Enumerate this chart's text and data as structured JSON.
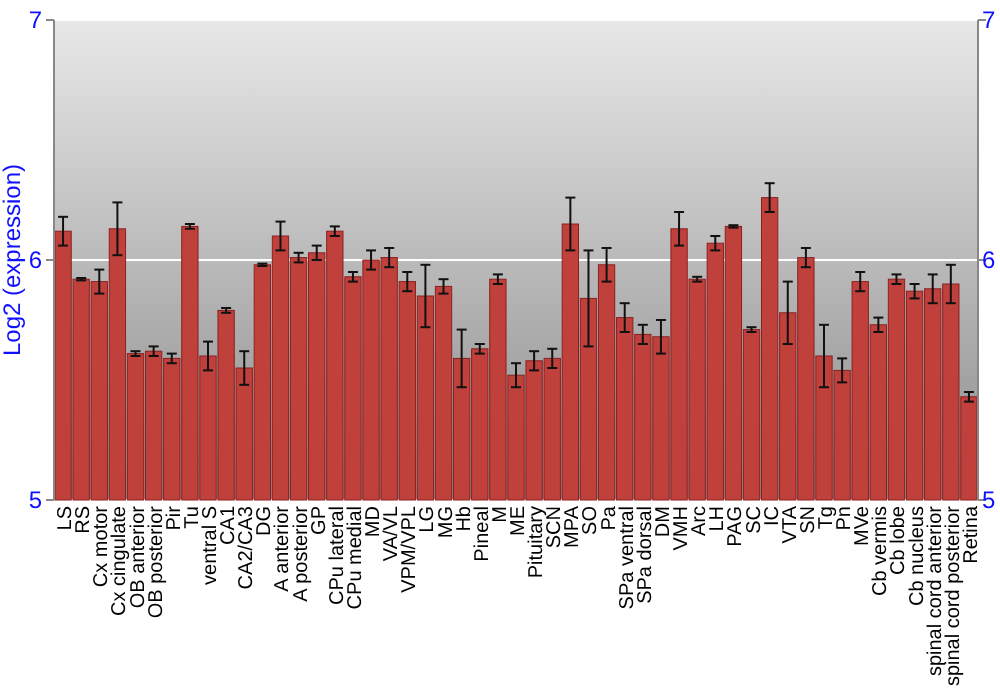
{
  "chart_data": {
    "type": "bar",
    "ylabel": "Log2 (expression)",
    "categories": [
      "LS",
      "RS",
      "Cx motor",
      "Cx cingulate",
      "OB anterior",
      "OB posterior",
      "Pir",
      "Tu",
      "ventral S",
      "CA1",
      "CA2/CA3",
      "DG",
      "A anterior",
      "A posterior",
      "GP",
      "CPu lateral",
      "CPu medial",
      "MD",
      "VA/VL",
      "VPM/VPL",
      "LG",
      "MG",
      "Hb",
      "Pineal",
      "M",
      "ME",
      "Pituitary",
      "SCN",
      "MPA",
      "SO",
      "Pa",
      "SPa ventral",
      "SPa dorsal",
      "DM",
      "VMH",
      "Arc",
      "LH",
      "PAG",
      "SC",
      "IC",
      "VTA",
      "SN",
      "Tg",
      "Pn",
      "MVe",
      "Cb vermis",
      "Cb lobe",
      "Cb nucleus",
      "spinal cord anterior",
      "spinal cord posterior",
      "Retina"
    ],
    "values": [
      6.12,
      5.92,
      5.91,
      6.13,
      5.61,
      5.62,
      5.59,
      6.14,
      5.6,
      5.79,
      5.55,
      5.98,
      6.1,
      6.01,
      6.03,
      6.12,
      5.93,
      6.0,
      6.01,
      5.91,
      5.85,
      5.89,
      5.59,
      5.63,
      5.92,
      5.52,
      5.58,
      5.59,
      6.15,
      5.84,
      5.98,
      5.76,
      5.69,
      5.68,
      6.13,
      5.92,
      6.07,
      6.14,
      5.71,
      6.26,
      5.78,
      6.01,
      5.6,
      5.54,
      5.91,
      5.73,
      5.92,
      5.87,
      5.88,
      5.9,
      5.43
    ],
    "errors": [
      0.06,
      0.005,
      0.05,
      0.11,
      0.01,
      0.02,
      0.02,
      0.01,
      0.06,
      0.01,
      0.07,
      0.005,
      0.06,
      0.02,
      0.03,
      0.02,
      0.02,
      0.04,
      0.04,
      0.04,
      0.13,
      0.03,
      0.12,
      0.02,
      0.02,
      0.05,
      0.04,
      0.04,
      0.11,
      0.2,
      0.07,
      0.06,
      0.04,
      0.07,
      0.07,
      0.01,
      0.03,
      0.005,
      0.01,
      0.06,
      0.13,
      0.04,
      0.13,
      0.05,
      0.04,
      0.03,
      0.02,
      0.03,
      0.06,
      0.08,
      0.02
    ],
    "color": "#c0403c",
    "ylim": [
      5,
      7
    ],
    "yticks": [
      5,
      6,
      7
    ],
    "y2lim": [
      5,
      7
    ],
    "y2ticks": [
      5,
      6,
      7
    ],
    "grid": "y"
  }
}
